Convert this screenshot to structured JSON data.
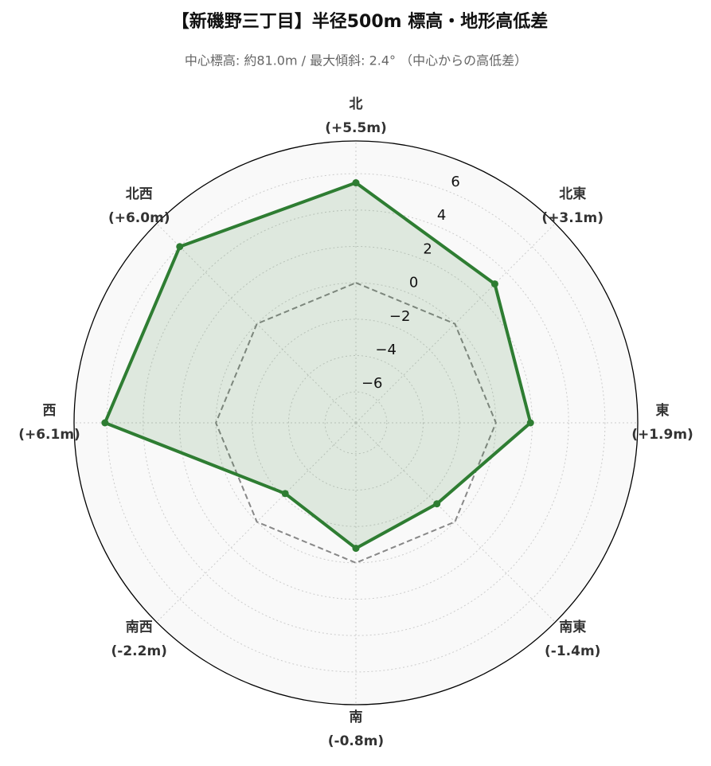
{
  "chart_data": {
    "type": "radar",
    "title": "【新磯野三丁目】半径500m 標高・地形高低差",
    "subtitle": "中心標高: 約81.0m / 最大傾斜: 2.4° （中心からの高低差）",
    "categories": [
      "北",
      "北東",
      "東",
      "南東",
      "南",
      "南西",
      "西",
      "北西"
    ],
    "values": [
      5.5,
      3.1,
      1.9,
      -1.4,
      -0.8,
      -2.2,
      6.1,
      6.0
    ],
    "value_labels": [
      "(+5.5m)",
      "(+3.1m)",
      "(+1.9m)",
      "(-1.4m)",
      "(-0.8m)",
      "(-2.2m)",
      "(+6.1m)",
      "(+6.0m)"
    ],
    "color": "#2e7d32",
    "reference_line": 0,
    "ylim": [
      -7.7,
      7.8
    ],
    "yticks": [
      {
        "value": -6,
        "label": "−6"
      },
      {
        "value": -4,
        "label": "−4"
      },
      {
        "value": -2,
        "label": "−2"
      },
      0,
      2,
      4,
      6
    ],
    "grid": true
  }
}
